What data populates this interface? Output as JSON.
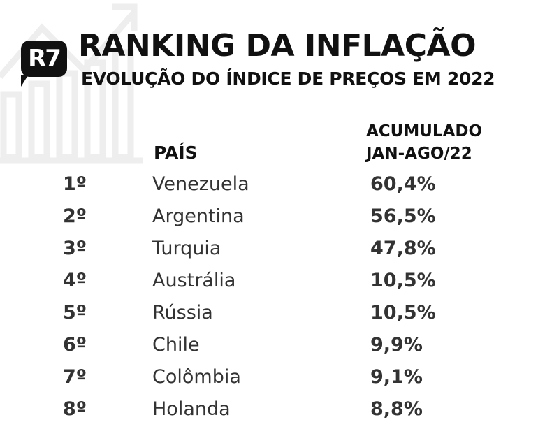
{
  "header": {
    "logo": "R7",
    "title": "RANKING DA INFLAÇÃO",
    "subtitle": "EVOLUÇÃO DO ÍNDICE DE PREÇOS EM 2022"
  },
  "table": {
    "columns": {
      "country": "PAÍS",
      "value_line1": "ACUMULADO",
      "value_line2": "JAN-AGO/22"
    },
    "rows": [
      {
        "rank": "1º",
        "country": "Venezuela",
        "value": "60,4%"
      },
      {
        "rank": "2º",
        "country": "Argentina",
        "value": "56,5%"
      },
      {
        "rank": "3º",
        "country": "Turquia",
        "value": "47,8%"
      },
      {
        "rank": "4º",
        "country": "Austrália",
        "value": "10,5%"
      },
      {
        "rank": "5º",
        "country": "Rússia",
        "value": "10,5%"
      },
      {
        "rank": "6º",
        "country": "Chile",
        "value": "9,9%"
      },
      {
        "rank": "7º",
        "country": "Colômbia",
        "value": "9,1%"
      },
      {
        "rank": "8º",
        "country": "Holanda",
        "value": "8,8%"
      }
    ]
  }
}
